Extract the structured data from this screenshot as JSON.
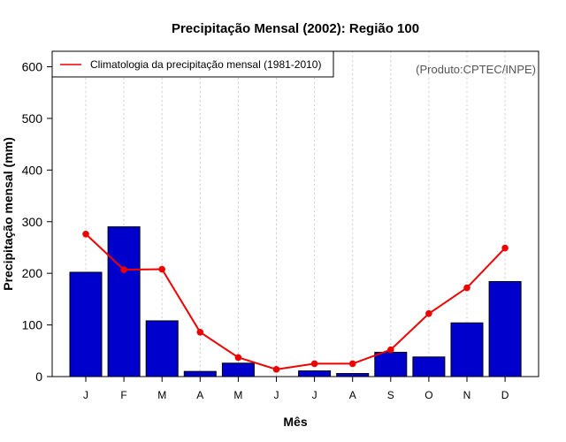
{
  "chart_data": {
    "type": "bar",
    "title": "Precipitação Mensal (2002): Região 100",
    "xlabel": "Mês",
    "ylabel": "Precipitação mensal (mm)",
    "ylim": [
      0,
      630
    ],
    "yticks": [
      0,
      100,
      200,
      300,
      400,
      500,
      600
    ],
    "grid": "vertical-dotted",
    "legend_position": "top-left",
    "credit": "(Produto:CPTEC/INPE)",
    "categories": [
      "J",
      "F",
      "M",
      "A",
      "M",
      "J",
      "J",
      "A",
      "S",
      "O",
      "N",
      "D"
    ],
    "series": [
      {
        "name": "Precipitação mensal (2002)",
        "type": "bar",
        "color": "#0000cc",
        "values": [
          202,
          290,
          108,
          10,
          26,
          0,
          11,
          6,
          47,
          38,
          104,
          184
        ]
      },
      {
        "name": "Climatologia da precipitação mensal (1981-2010)",
        "type": "line",
        "color": "#ee0000",
        "values": [
          276,
          207,
          208,
          86,
          37,
          14,
          25,
          25,
          52,
          122,
          172,
          249
        ]
      }
    ]
  }
}
